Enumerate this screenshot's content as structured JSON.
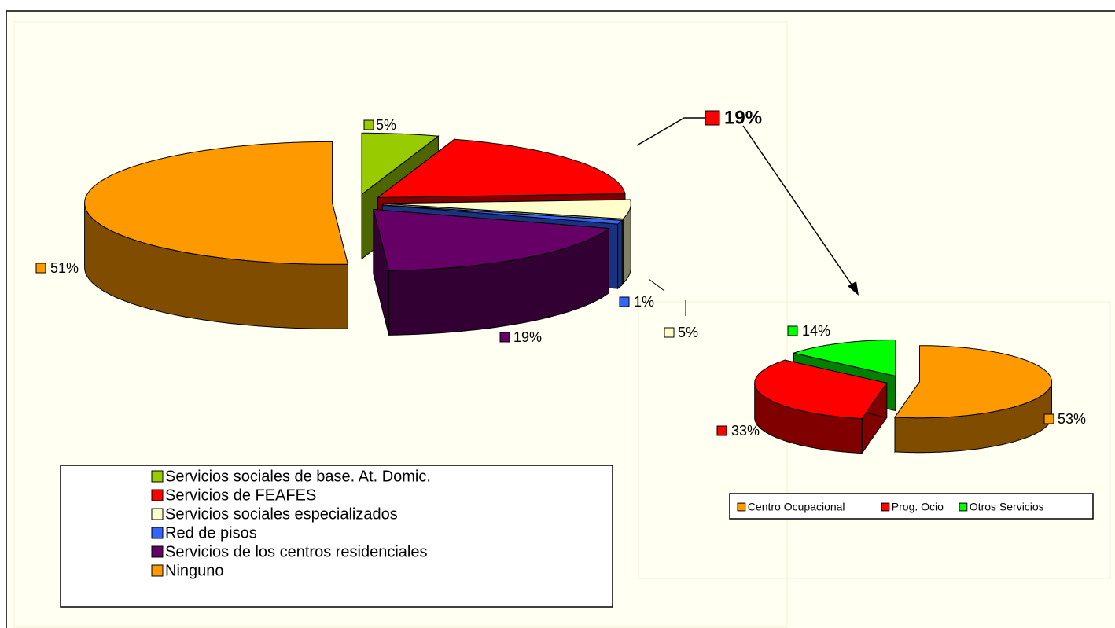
{
  "chart_data": [
    {
      "type": "pie3d",
      "categories": [
        "Servicios sociales de base. At. Domic.",
        "Servicios de FEAFES",
        "Servicios sociales especializados",
        "Red de pisos",
        "Servicios de los centros residenciales",
        "Ninguno"
      ],
      "values": [
        5,
        19,
        5,
        1,
        19,
        51
      ],
      "value_labels": [
        "5%",
        "19%",
        "5%",
        "1%",
        "19%",
        "51%"
      ],
      "colors": [
        "#99cc00",
        "#ff0000",
        "#ffffcc",
        "#3366ff",
        "#660066",
        "#ff9900"
      ]
    },
    {
      "type": "pie3d",
      "categories": [
        "Centro Ocupacional",
        "Prog. Ocio",
        "Otros Servicios"
      ],
      "values": [
        53,
        33,
        14
      ],
      "value_labels": [
        "53%",
        "33%",
        "14%"
      ],
      "colors": [
        "#ff9900",
        "#ff0000",
        "#00ff00"
      ]
    }
  ]
}
